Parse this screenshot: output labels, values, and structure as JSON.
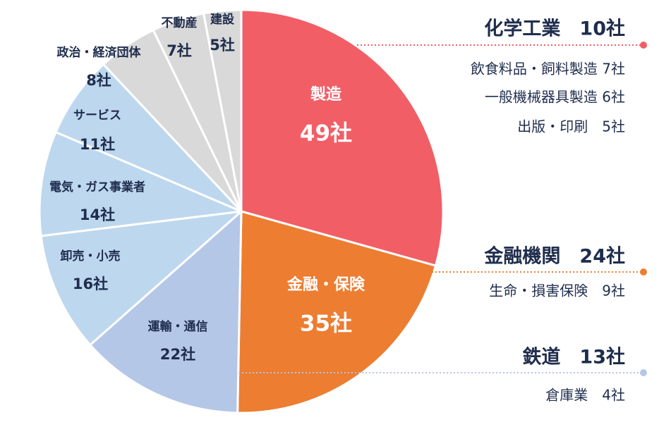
{
  "chart_data": {
    "type": "pie",
    "title": "",
    "unit_suffix": "社",
    "slices": [
      {
        "label": "製造",
        "value": 49,
        "value_label": "49社",
        "color": "#f25e66",
        "text_color": "#ffffff"
      },
      {
        "label": "金融・保険",
        "value": 35,
        "value_label": "35社",
        "color": "#ed7d31",
        "text_color": "#ffffff"
      },
      {
        "label": "運輸・通信",
        "value": 22,
        "value_label": "22社",
        "color": "#b4c7e7",
        "text_color": "#1f2d4d"
      },
      {
        "label": "卸売・小売",
        "value": 16,
        "value_label": "16社",
        "color": "#bdd7ee",
        "text_color": "#1f2d4d"
      },
      {
        "label": "電気・ガス事業者",
        "value": 14,
        "value_label": "14社",
        "color": "#bdd7ee",
        "text_color": "#1f2d4d"
      },
      {
        "label": "サービス",
        "value": 11,
        "value_label": "11社",
        "color": "#bdd7ee",
        "text_color": "#1f2d4d"
      },
      {
        "label": "政治・経済団体",
        "value": 8,
        "value_label": "8社",
        "color": "#d9d9d9",
        "text_color": "#1f2d4d"
      },
      {
        "label": "不動産",
        "value": 7,
        "value_label": "7社",
        "color": "#d9d9d9",
        "text_color": "#1f2d4d"
      },
      {
        "label": "建設",
        "value": 5,
        "value_label": "5社",
        "color": "#d9d9d9",
        "text_color": "#1f2d4d"
      }
    ],
    "callouts": [
      {
        "title": "化学工業　10社",
        "color": "#f25e66",
        "items": [
          "飲食料品・飼料製造 7社",
          "一般機械器具製造 6社",
          "出版・印刷　5社"
        ]
      },
      {
        "title": "金融機関　24社",
        "color": "#ed7d31",
        "items": [
          "生命・損害保険　9社"
        ]
      },
      {
        "title": "鉄道　13社",
        "color": "#b4c7e7",
        "items": [
          "倉庫業　4社"
        ]
      }
    ]
  }
}
